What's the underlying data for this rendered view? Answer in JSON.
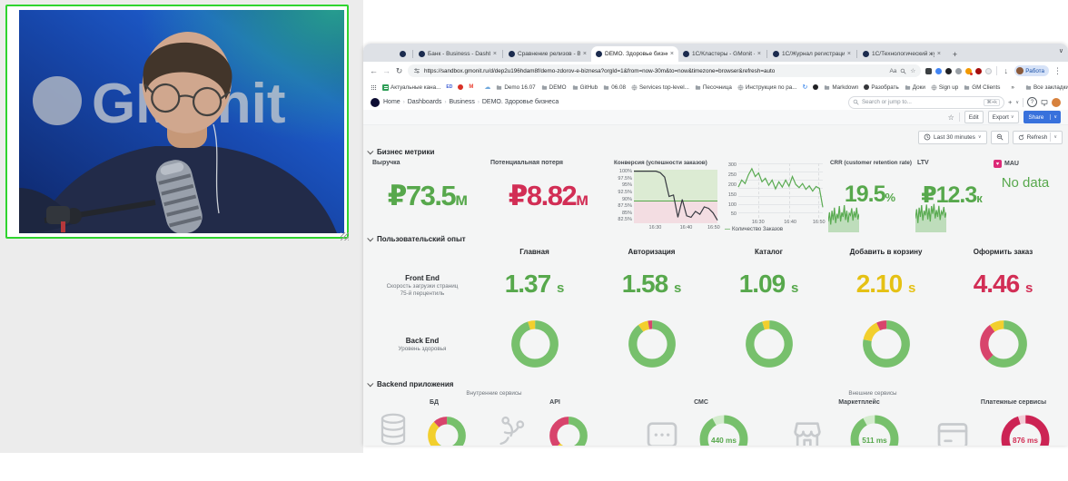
{
  "colors": {
    "g": "#77c06c",
    "y": "#f2cf2d",
    "r": "#d8446c",
    "lg": "#d4ecce",
    "lr": "#f3ccd6",
    "rr": "#cc2454"
  },
  "glyphs": {
    "close": "×",
    "plus": "+",
    "caret": "∨",
    "chevrons": "»",
    "star": "☆",
    "back": "←",
    "fwd": "→",
    "reload": "↻",
    "dots": "⋮",
    "down": "↓",
    "heart": "♥",
    "dash": "—",
    "translate": "Aа",
    "crumb": "›",
    "cloud": "☁",
    "sync": "↻",
    "m": "M",
    "ed": "ED"
  },
  "webcam": {
    "watermark": "GMonit"
  },
  "browser": {
    "tabs": [
      "Банк - Business - Dashboa",
      "Сравнение релизов - Busi",
      "DEMO. Здоровье бизнеса -",
      "1С/Кластеры - GMonit - Da",
      "1С/Журнал регистрации -",
      "1С/Технологический журн"
    ],
    "url": "https://sandbox.gmonit.ru/d/dep2u196hdam8f/demo-zdorov-e-biznesa?orgId=1&from=now-30m&to=now&timezone=browser&refresh=auto",
    "profile": "Работа",
    "bookmarks": [
      "Актуальные кана...",
      "Demo 16.07",
      "DEMO",
      "GitHub",
      "06.08",
      "Services top-level...",
      "Песочница",
      "Инструкция по ра...",
      "Markdown",
      "Разобрать",
      "Доки",
      "Sign up",
      "GM Clients",
      "Все закладки"
    ]
  },
  "grafana": {
    "breadcrumb": [
      "Home",
      "Dashboards",
      "Business",
      "DEMO. Здоровье бизнеса"
    ],
    "search": {
      "placeholder": "Search or jump to...",
      "shortcut": "⌘+k"
    },
    "toolbar": {
      "edit": "Edit",
      "export": "Export",
      "share": "Share"
    },
    "timebar": {
      "range": "Last 30 minutes",
      "refresh": "Refresh"
    },
    "sections": {
      "business": {
        "title": "Бизнес метрики",
        "revenue": {
          "title": "Выручка",
          "value": "₽73.5",
          "unit": "м"
        },
        "loss": {
          "title": "Потенциальная потеря",
          "value": "₽8.82",
          "unit": "м"
        },
        "conversion": {
          "title": "Конверсия (успешности заказов)",
          "yticks": [
            "100%",
            "97.5%",
            "95%",
            "92.5%",
            "90%",
            "87.5%",
            "85%",
            "82.5%"
          ],
          "xticks": [
            "16:30",
            "16:40",
            "16:50"
          ]
        },
        "orders": {
          "yticks": [
            "300",
            "250",
            "200",
            "150",
            "100",
            "50"
          ],
          "xticks": [
            "16:30",
            "16:40",
            "16:50"
          ],
          "legend": "Количество Заказов"
        },
        "crr": {
          "title": "CRR (customer retention rate)",
          "value": "19.5",
          "unit": "%"
        },
        "ltv": {
          "title": "LTV",
          "value": "₽12.3",
          "unit": "к"
        },
        "mau": {
          "title": "MAU",
          "value": "No data"
        }
      },
      "ux": {
        "title": "Пользовательский опыт",
        "columns": [
          "Главная",
          "Авторизация",
          "Каталог",
          "Добавить в корзину",
          "Оформить заказ"
        ],
        "frontend": {
          "name": "Front End",
          "sub1": "Скорость загрузки страниц",
          "sub2": "75-й перцентиль",
          "values": [
            {
              "v": "1.37",
              "u": "s"
            },
            {
              "v": "1.58",
              "u": "s"
            },
            {
              "v": "1.09",
              "u": "s"
            },
            {
              "v": "2.10",
              "u": "s"
            },
            {
              "v": "4.46",
              "u": "s"
            }
          ]
        },
        "backend": {
          "name": "Back End",
          "sub": "Уровень здоровья"
        }
      },
      "apps": {
        "title": "Backend приложения",
        "groups": [
          "Внутренние сервисы",
          "Внешние сервисы"
        ],
        "panels": [
          "БД",
          "API",
          "СМС",
          "Маркетплейс",
          "Платежные сервисы"
        ]
      }
    }
  },
  "chart_data": [
    {
      "id": "conversion",
      "type": "line",
      "title": "Конверсия (успешности заказов)",
      "ylabel": "%",
      "ylim": [
        82.5,
        100.5
      ],
      "threshold": 90,
      "x_labels": [
        "16:30",
        "16:40",
        "16:50"
      ],
      "values": [
        100,
        100,
        100,
        100,
        100,
        100,
        99.5,
        98,
        91.5,
        92,
        84.5,
        90.5,
        85,
        84.5,
        86.5,
        85.5,
        88,
        87.5,
        86,
        83.5
      ]
    },
    {
      "id": "orders",
      "type": "line",
      "legend": "Количество Заказов",
      "ylim": [
        0,
        310
      ],
      "x_labels": [
        "16:30",
        "16:40",
        "16:50"
      ],
      "values": [
        175,
        215,
        195,
        245,
        280,
        235,
        255,
        205,
        225,
        185,
        215,
        165,
        205,
        175,
        215,
        180,
        235,
        190,
        172,
        195,
        162,
        182,
        152,
        178,
        168,
        60
      ]
    },
    {
      "id": "crr_spark",
      "type": "area",
      "ylim": [
        0,
        100
      ],
      "values": [
        35,
        65,
        25,
        70,
        40,
        80,
        30,
        60,
        45,
        85,
        35,
        65,
        50,
        88,
        40,
        70,
        32,
        62,
        55,
        78,
        38,
        68,
        48,
        80,
        42,
        60
      ]
    },
    {
      "id": "ltv_spark",
      "type": "area",
      "ylim": [
        0,
        100
      ],
      "values": [
        45,
        75,
        30,
        80,
        50,
        88,
        38,
        70,
        55,
        90,
        42,
        78,
        35,
        85,
        60,
        92,
        45,
        72,
        50,
        86,
        40,
        68,
        58,
        82,
        48,
        65
      ]
    },
    {
      "id": "health_donuts",
      "type": "donut",
      "labels": [
        "Главная",
        "Авторизация",
        "Каталог",
        "Добавить в корзину",
        "Оформить заказ"
      ],
      "series": [
        [
          {
            "c": "g",
            "v": 95
          },
          {
            "c": "y",
            "v": 5
          }
        ],
        [
          {
            "c": "g",
            "v": 90
          },
          {
            "c": "y",
            "v": 7
          },
          {
            "c": "r",
            "v": 3
          }
        ],
        [
          {
            "c": "g",
            "v": 95
          },
          {
            "c": "y",
            "v": 5
          }
        ],
        [
          {
            "c": "g",
            "v": 78
          },
          {
            "c": "y",
            "v": 15
          },
          {
            "c": "r",
            "v": 7
          }
        ],
        [
          {
            "c": "g",
            "v": 62
          },
          {
            "c": "r",
            "v": 28
          },
          {
            "c": "y",
            "v": 10
          }
        ]
      ]
    },
    {
      "id": "service_donuts",
      "type": "donut",
      "labels": [
        "БД",
        "API"
      ],
      "series": [
        [
          {
            "c": "g",
            "v": 60
          },
          {
            "c": "y",
            "v": 28
          },
          {
            "c": "r",
            "v": 12
          }
        ],
        [
          {
            "c": "g",
            "v": 58
          },
          {
            "c": "y",
            "v": 5
          },
          {
            "c": "r",
            "v": 37
          }
        ]
      ]
    },
    {
      "id": "ms_gauges",
      "type": "gauge",
      "series": [
        {
          "label": "СМС",
          "value": "440 ms",
          "segs": [
            {
              "c": "g",
              "v": 92
            },
            {
              "c": "lg",
              "v": 8
            }
          ]
        },
        {
          "label": "Маркетплейс",
          "value": "511 ms",
          "segs": [
            {
              "c": "g",
              "v": 92
            },
            {
              "c": "lg",
              "v": 8
            }
          ]
        },
        {
          "label": "Платежные сервисы",
          "value": "876 ms",
          "segs": [
            {
              "c": "rr",
              "v": 95
            },
            {
              "c": "lr",
              "v": 5
            }
          ]
        }
      ]
    }
  ]
}
